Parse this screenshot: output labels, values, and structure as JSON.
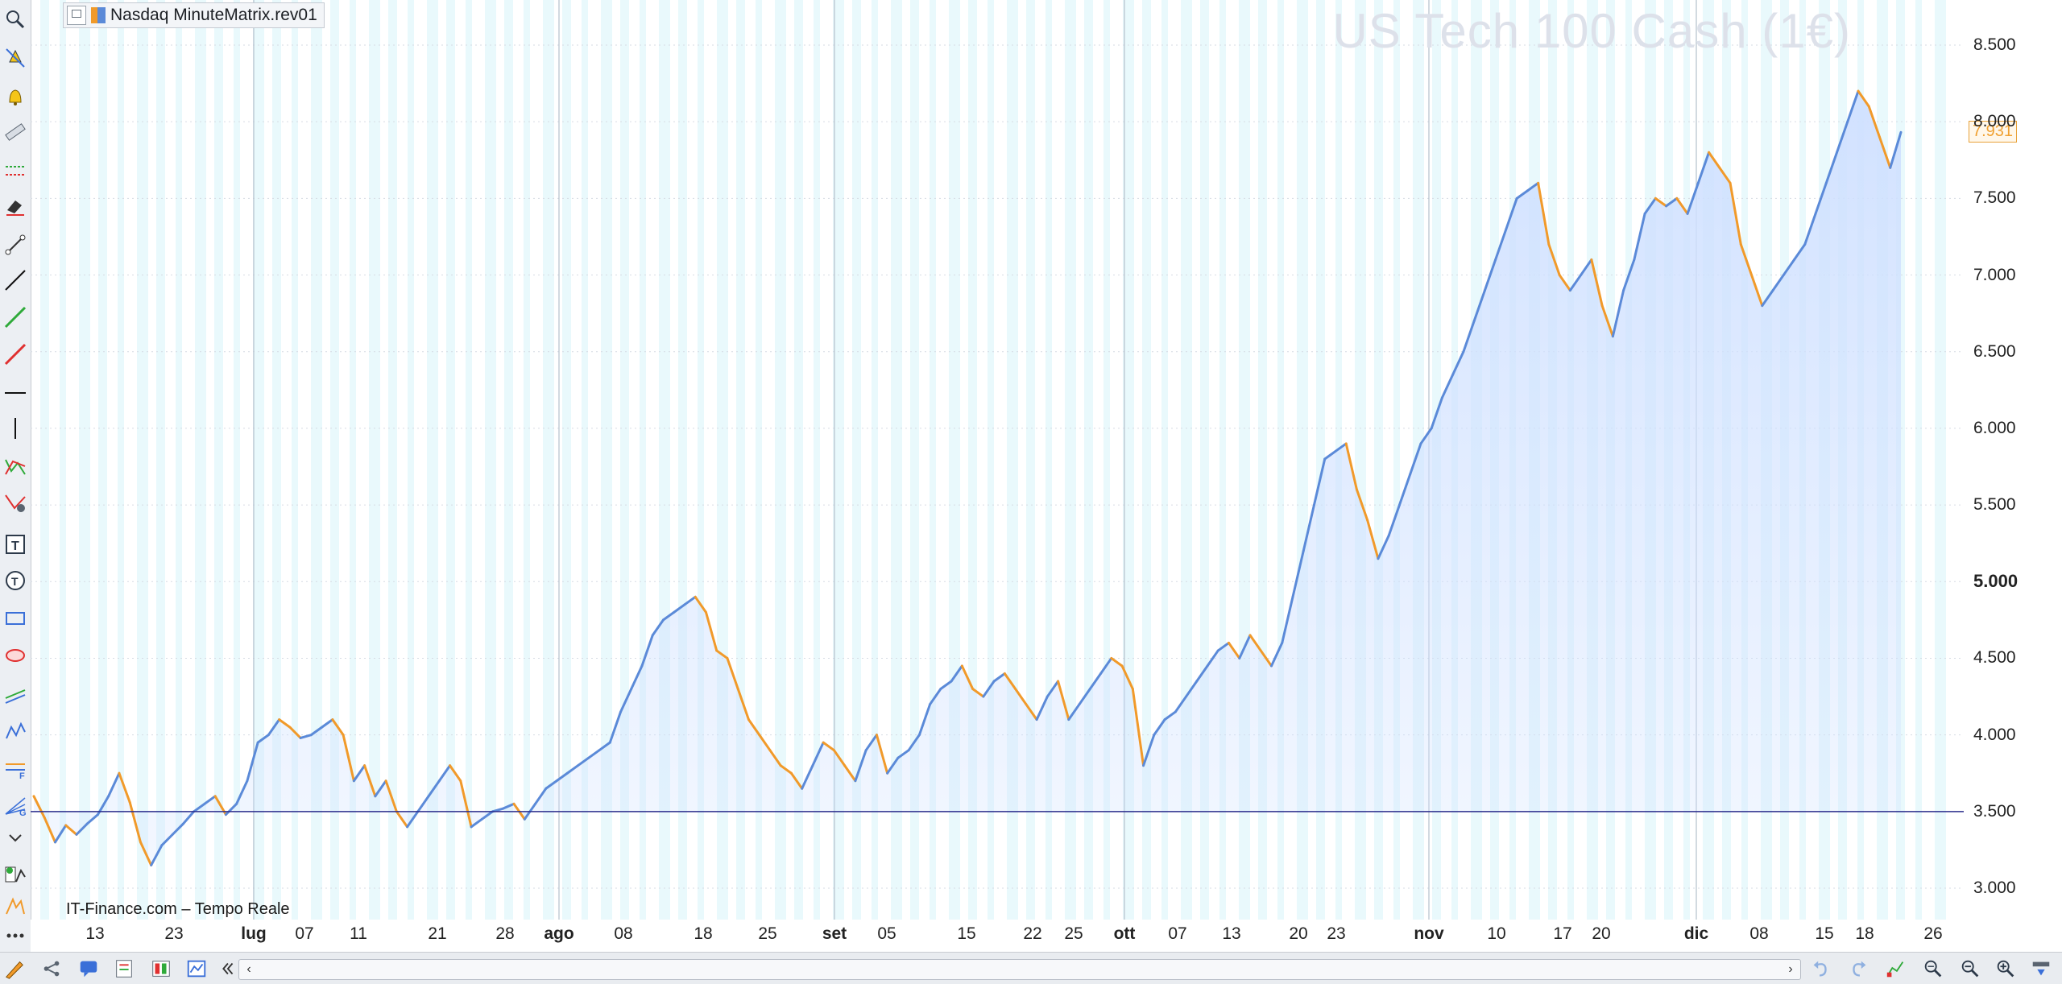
{
  "tab": {
    "title": "Nasdaq MinuteMatrix.rev01"
  },
  "instrument_title": "US Tech 100 Cash (1€)",
  "source_label": "IT-Finance.com – Tempo Reale",
  "current_price": "7.931",
  "price_axis": [
    "8.500",
    "8.000",
    "7.500",
    "7.000",
    "6.500",
    "6.000",
    "5.500",
    "5.000",
    "4.500",
    "4.000",
    "3.500",
    "3.000"
  ],
  "price_axis_bold": "5.000",
  "time_axis": [
    {
      "label": "13",
      "month": false
    },
    {
      "label": "23",
      "month": false
    },
    {
      "label": "lug",
      "month": true
    },
    {
      "label": "07",
      "month": false
    },
    {
      "label": "11",
      "month": false
    },
    {
      "label": "21",
      "month": false
    },
    {
      "label": "28",
      "month": false
    },
    {
      "label": "ago",
      "month": true
    },
    {
      "label": "08",
      "month": false
    },
    {
      "label": "18",
      "month": false
    },
    {
      "label": "25",
      "month": false
    },
    {
      "label": "set",
      "month": true
    },
    {
      "label": "05",
      "month": false
    },
    {
      "label": "15",
      "month": false
    },
    {
      "label": "22",
      "month": false
    },
    {
      "label": "25",
      "month": false
    },
    {
      "label": "ott",
      "month": true
    },
    {
      "label": "07",
      "month": false
    },
    {
      "label": "13",
      "month": false
    },
    {
      "label": "20",
      "month": false
    },
    {
      "label": "23",
      "month": false
    },
    {
      "label": "nov",
      "month": true
    },
    {
      "label": "10",
      "month": false
    },
    {
      "label": "17",
      "month": false
    },
    {
      "label": "20",
      "month": false
    },
    {
      "label": "dic",
      "month": true
    },
    {
      "label": "08",
      "month": false
    },
    {
      "label": "15",
      "month": false
    },
    {
      "label": "18",
      "month": false
    },
    {
      "label": "26",
      "month": false
    }
  ],
  "chart_data": {
    "type": "line",
    "title": "US Tech 100 Cash (1€)",
    "xlabel": "",
    "ylabel": "",
    "ylim": [
      2800,
      8800
    ],
    "reference_line": 3500,
    "last_value": 7931,
    "x_range_approx": "June to late December",
    "series": [
      {
        "values": [
          3600,
          3460,
          3300,
          3410,
          3350,
          3420,
          3480,
          3600,
          3750,
          3560,
          3300,
          3150,
          3280,
          3350,
          3420,
          3500,
          3550,
          3600,
          3480,
          3550,
          3700,
          3950,
          4000,
          4100,
          4050,
          3980,
          4000,
          4050,
          4100,
          4000,
          3700,
          3800,
          3600,
          3700,
          3500,
          3400,
          3500,
          3600,
          3700,
          3800,
          3700,
          3400,
          3450,
          3500,
          3520,
          3550,
          3450,
          3550,
          3650,
          3700,
          3750,
          3800,
          3850,
          3900,
          3950,
          4150,
          4300,
          4450,
          4650,
          4750,
          4800,
          4850,
          4900,
          4800,
          4550,
          4500,
          4300,
          4100,
          4000,
          3900,
          3800,
          3750,
          3650,
          3800,
          3950,
          3900,
          3800,
          3700,
          3900,
          4000,
          3750,
          3850,
          3900,
          4000,
          4200,
          4300,
          4350,
          4450,
          4300,
          4250,
          4350,
          4400,
          4300,
          4200,
          4100,
          4250,
          4350,
          4100,
          4200,
          4300,
          4400,
          4500,
          4450,
          4300,
          3800,
          4000,
          4100,
          4150,
          4250,
          4350,
          4450,
          4550,
          4600,
          4500,
          4650,
          4550,
          4450,
          4600,
          4900,
          5200,
          5500,
          5800,
          5850,
          5900,
          5600,
          5400,
          5150,
          5300,
          5500,
          5700,
          5900,
          6000,
          6200,
          6350,
          6500,
          6700,
          6900,
          7100,
          7300,
          7500,
          7550,
          7600,
          7200,
          7000,
          6900,
          7000,
          7100,
          6800,
          6600,
          6900,
          7100,
          7400,
          7500,
          7450,
          7500,
          7400,
          7600,
          7800,
          7700,
          7600,
          7200,
          7000,
          6800,
          6900,
          7000,
          7100,
          7200,
          7400,
          7600,
          7800,
          8000,
          8200,
          8100,
          7900,
          7700,
          7931
        ]
      }
    ]
  },
  "icons": {
    "left_toolbar": [
      "zoom-icon",
      "alert-icon",
      "bell-icon",
      "ruler-icon",
      "horizontal-zone-icon",
      "eraser-icon",
      "segment-icon",
      "line-icon",
      "green-trendline-icon",
      "red-trendline-icon",
      "horizontal-line-icon",
      "vertical-line-icon",
      "fibonacci-retracement-icon",
      "fibonacci-fan-icon",
      "text-icon",
      "text-bubble-icon",
      "rectangle-icon",
      "ellipse-icon",
      "channel-icon",
      "pattern-icon",
      "fibonacci-levels-icon",
      "gann-icon",
      "collapse-icon",
      "indicator-icon",
      "drawing-tools-icon",
      "more-icon"
    ],
    "bottom_toolbar": [
      "pencil-icon",
      "share-icon",
      "comment-icon",
      "data-icon",
      "orders-icon",
      "chart-window-icon",
      "collapse-left-icon",
      "undo-icon",
      "redo-icon",
      "chart-settings-icon",
      "zoom-fit-icon",
      "zoom-out-icon",
      "zoom-in-icon",
      "scroll-down-icon"
    ]
  },
  "colors": {
    "line": "#5b8ad8",
    "line_down": "#f19a2a",
    "area_fill": "#cfe0ff",
    "stripe": "#dff6fb",
    "reference_line": "#2b2d8c",
    "price_marker": "#f0a030"
  }
}
